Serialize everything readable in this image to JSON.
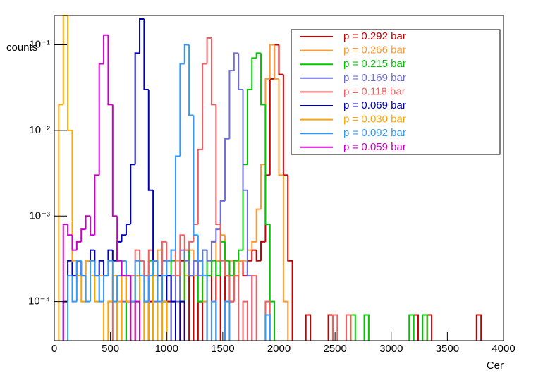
{
  "chart_data": {
    "type": "histogram",
    "xlabel": "Cer",
    "ylabel": "counts",
    "logy": true,
    "legend": "upper right",
    "xlim": [
      0,
      4000
    ],
    "xticks": [
      0,
      500,
      1000,
      1500,
      2000,
      2500,
      3000,
      3500,
      4000
    ],
    "ylim": [
      3.5e-05,
      0.22
    ],
    "yticks": [
      {
        "value": 0.0001,
        "label": "10⁻⁴"
      },
      {
        "value": 0.001,
        "label": "10⁻³"
      },
      {
        "value": 0.01,
        "label": "10⁻²"
      },
      {
        "value": 0.1,
        "label": "10⁻¹"
      }
    ],
    "bins": [
      0,
      40,
      80,
      120,
      160,
      200,
      240,
      280,
      320,
      360,
      400,
      440,
      480,
      520,
      560,
      600,
      640,
      680,
      720,
      760,
      800,
      840,
      880,
      920,
      960,
      1000,
      1040,
      1080,
      1120,
      1160,
      1200,
      1240,
      1280,
      1320,
      1360,
      1400,
      1440,
      1480,
      1520,
      1560,
      1600,
      1640,
      1680,
      1720,
      1760,
      1800,
      1840,
      1880,
      1920,
      1960,
      2000,
      2040,
      2080,
      2120,
      2160,
      2200,
      2240,
      2280,
      2320,
      2360,
      2400,
      2440,
      2480,
      2520,
      2560,
      2600,
      2640,
      2680,
      2720,
      2760,
      2800,
      2840,
      2880,
      2920,
      2960,
      3000,
      3040,
      3080,
      3120,
      3160,
      3200,
      3240,
      3280,
      3320,
      3360,
      3400,
      3440,
      3480,
      3520,
      3560,
      3600,
      3640,
      3680,
      3720,
      3760,
      3800,
      3840,
      3880,
      3920,
      3960,
      4000
    ],
    "series": [
      {
        "name": "p = 0.292 bar",
        "color": "#c80000",
        "values": [
          null,
          null,
          null,
          null,
          null,
          null,
          null,
          null,
          null,
          null,
          null,
          null,
          null,
          null,
          null,
          null,
          0.0001,
          null,
          0.0002,
          null,
          null,
          0.0001,
          null,
          0.0002,
          null,
          0.0001,
          null,
          null,
          0.0003,
          null,
          0.0002,
          null,
          0.0001,
          null,
          0.0002,
          null,
          0.0003,
          null,
          0.0002,
          0.0001,
          0.0002,
          0.0003,
          0.0002,
          0.0003,
          0.0004,
          0.0003,
          0.0005,
          0.003,
          0.04,
          0.1,
          0.045,
          0.003,
          0.0003,
          null,
          null,
          null,
          7e-05,
          null,
          null,
          null,
          null,
          7e-05,
          null,
          null,
          null,
          7e-05,
          null,
          null,
          null,
          null,
          null,
          null,
          null,
          null,
          null,
          null,
          null,
          null,
          null,
          null,
          7e-05,
          null,
          null,
          7e-05,
          null,
          null,
          null,
          null,
          null,
          null,
          null,
          null,
          null,
          null,
          7e-05,
          null,
          null,
          null,
          null,
          null
        ]
      },
      {
        "name": "p = 0.266 bar",
        "color": "#ff9933",
        "values": [
          null,
          null,
          null,
          null,
          null,
          null,
          null,
          null,
          null,
          null,
          null,
          null,
          null,
          null,
          0.0001,
          null,
          0.0002,
          0.0001,
          null,
          0.0003,
          0.0001,
          null,
          0.0002,
          0.0004,
          null,
          0.0002,
          0.0001,
          0.0003,
          null,
          0.0002,
          0.0004,
          0.0002,
          0.0003,
          0.0001,
          0.0002,
          0.0005,
          0.0003,
          0.0006,
          0.0002,
          0.0003,
          0.0002,
          0.0003,
          0.0003,
          0.0004,
          0.0005,
          0.0012,
          0.004,
          0.04,
          0.1,
          0.04,
          0.003,
          0.0001,
          null,
          null,
          null,
          null,
          null,
          null,
          null,
          null,
          null,
          null,
          null,
          null,
          null,
          null,
          null,
          null,
          null,
          null,
          null,
          null,
          null,
          null,
          null,
          null,
          null,
          null,
          null,
          null,
          null,
          null,
          null,
          null,
          null,
          null,
          null,
          null,
          null,
          null,
          null,
          null,
          null,
          null,
          null,
          null,
          null,
          null,
          null,
          null
        ]
      },
      {
        "name": "p = 0.215 bar",
        "color": "#00c800",
        "values": [
          null,
          null,
          null,
          null,
          null,
          null,
          null,
          null,
          null,
          null,
          null,
          null,
          null,
          null,
          null,
          0.0002,
          null,
          0.0001,
          0.0002,
          null,
          0.0001,
          0.0003,
          null,
          0.0002,
          0.0001,
          null,
          0.0003,
          0.0002,
          0.0001,
          0.0004,
          0.0002,
          0.0003,
          0.0001,
          0.0004,
          0.0002,
          0.0003,
          0.0002,
          0.0005,
          0.0003,
          0.0002,
          0.0003,
          0.0004,
          0.004,
          0.03,
          0.07,
          0.08,
          0.02,
          0.0008,
          0.0001,
          null,
          null,
          null,
          null,
          null,
          null,
          null,
          null,
          null,
          null,
          null,
          null,
          null,
          null,
          null,
          null,
          null,
          7e-05,
          null,
          null,
          7e-05,
          null,
          null,
          null,
          null,
          null,
          null,
          null,
          null,
          null,
          7e-05,
          null,
          null,
          7e-05,
          null,
          null,
          null,
          null,
          null,
          null,
          null,
          null,
          null,
          null,
          null,
          null,
          null,
          null,
          null,
          null,
          null
        ]
      },
      {
        "name": "p = 0.169 bar",
        "color": "#6c6cdc",
        "values": [
          null,
          null,
          null,
          null,
          null,
          null,
          null,
          null,
          null,
          null,
          null,
          null,
          null,
          null,
          null,
          0.0001,
          0.0002,
          null,
          0.0001,
          0.0003,
          0.0002,
          null,
          0.0001,
          0.0002,
          0.0003,
          null,
          0.0002,
          0.0001,
          0.0004,
          0.0003,
          0.0002,
          0.0003,
          0.0002,
          0.0004,
          0.0003,
          0.0005,
          0.0007,
          0.0015,
          0.008,
          0.05,
          0.08,
          0.03,
          0.002,
          0.0002,
          null,
          null,
          null,
          null,
          null,
          null,
          null,
          null,
          null,
          null,
          null,
          null,
          null,
          null,
          null,
          null,
          null,
          null,
          null,
          null,
          null,
          null,
          null,
          null,
          null,
          null,
          null,
          null,
          null,
          null,
          null,
          null,
          null,
          null,
          null,
          null,
          null,
          null,
          null,
          null,
          null,
          null,
          null,
          null,
          null,
          null,
          null,
          null,
          null,
          null,
          null,
          null,
          null,
          null,
          null,
          null
        ]
      },
      {
        "name": "p = 0.118 bar",
        "color": "#f06060",
        "values": [
          null,
          null,
          null,
          null,
          null,
          null,
          null,
          null,
          null,
          null,
          null,
          null,
          0.0001,
          null,
          0.0002,
          0.0003,
          0.0001,
          0.0002,
          0.0004,
          0.0003,
          0.0002,
          0.0004,
          0.0003,
          0.0002,
          0.0005,
          0.0003,
          0.0004,
          0.0002,
          0.0006,
          0.0004,
          0.0005,
          0.0008,
          0.006,
          0.06,
          0.12,
          0.02,
          0.0008,
          0.0003,
          0.0002,
          0.0001,
          0.0002,
          null,
          0.0001,
          null,
          0.0002,
          null,
          null,
          0.0001,
          null,
          null,
          null,
          null,
          null,
          null,
          null,
          null,
          null,
          null,
          null,
          null,
          null,
          null,
          7e-05,
          null,
          null,
          7e-05,
          null,
          null,
          null,
          null,
          null,
          null,
          null,
          null,
          null,
          null,
          null,
          null,
          null,
          null,
          null,
          null,
          null,
          null,
          null,
          null,
          null,
          null,
          null,
          null,
          null,
          null,
          null,
          null,
          null,
          null,
          null,
          null,
          null,
          null
        ]
      },
      {
        "name": "p = 0.069 bar",
        "color": "#0000b4",
        "values": [
          null,
          null,
          0.0001,
          0.0003,
          0.0002,
          0.0003,
          0.0002,
          0.0003,
          0.0004,
          0.0002,
          0.0003,
          0.0002,
          0.0004,
          0.0003,
          0.0005,
          0.0006,
          0.0008,
          0.004,
          0.08,
          0.2,
          0.03,
          0.002,
          0.0003,
          0.0002,
          0.0001,
          0.0002,
          0.0001,
          null,
          0.0001,
          null,
          null,
          null,
          null,
          null,
          null,
          null,
          null,
          null,
          null,
          null,
          null,
          null,
          null,
          null,
          null,
          null,
          null,
          null,
          null,
          null,
          null,
          null,
          null,
          null,
          null,
          null,
          null,
          null,
          null,
          null,
          null,
          null,
          null,
          null,
          null,
          null,
          null,
          null,
          null,
          null,
          null,
          null,
          null,
          null,
          null,
          null,
          null,
          null,
          null,
          null,
          null,
          null,
          null,
          null,
          null,
          null,
          null,
          null,
          null,
          null,
          null,
          null,
          null,
          null,
          null,
          null,
          null,
          null,
          null,
          null
        ]
      },
      {
        "name": "p = 0.030 bar",
        "color": "#ffa500",
        "values": [
          null,
          0.02,
          0.22,
          0.01,
          0.0003,
          0.0002,
          0.0001,
          0.0003,
          0.0002,
          0.0001,
          0.0002,
          null,
          0.0001,
          0.0002,
          null,
          0.0003,
          0.0001,
          null,
          0.0002,
          null,
          0.0001,
          null,
          0.0002,
          null,
          0.0001,
          null,
          null,
          null,
          null,
          null,
          null,
          null,
          null,
          null,
          null,
          null,
          null,
          null,
          null,
          null,
          null,
          null,
          null,
          null,
          null,
          null,
          null,
          null,
          null,
          null,
          null,
          null,
          null,
          null,
          null,
          null,
          null,
          null,
          null,
          null,
          null,
          null,
          null,
          null,
          null,
          null,
          null,
          null,
          null,
          null,
          null,
          null,
          null,
          null,
          null,
          null,
          null,
          null,
          null,
          null,
          null,
          null,
          null,
          null,
          null,
          null,
          null,
          null,
          null,
          null,
          null,
          null,
          null,
          null,
          null,
          null,
          null,
          null,
          null,
          null
        ]
      },
      {
        "name": "p = 0.092 bar",
        "color": "#3399ff",
        "values": [
          null,
          null,
          null,
          0.0002,
          0.0001,
          0.0003,
          0.0002,
          0.0001,
          0.0003,
          0.0002,
          0.0001,
          0.0002,
          0.0003,
          0.0001,
          0.0002,
          0.0003,
          0.0002,
          0.0001,
          0.0003,
          0.0002,
          0.0001,
          0.0002,
          0.0003,
          0.0001,
          0.0002,
          0.0003,
          0.0004,
          0.005,
          0.06,
          0.1,
          0.015,
          0.0006,
          0.0003,
          0.0002,
          null,
          0.0001,
          null,
          null,
          0.0001,
          null,
          null,
          null,
          null,
          null,
          null,
          null,
          null,
          7e-05,
          null,
          null,
          null,
          null,
          null,
          null,
          null,
          null,
          null,
          null,
          null,
          null,
          null,
          null,
          null,
          null,
          null,
          null,
          null,
          null,
          null,
          null,
          null,
          null,
          null,
          null,
          null,
          null,
          null,
          null,
          null,
          null,
          null,
          null,
          null,
          null,
          null,
          null,
          null,
          null,
          null,
          null,
          null,
          null,
          null,
          null,
          null,
          null,
          null,
          null,
          null,
          null
        ]
      },
      {
        "name": "p = 0.059 bar",
        "color": "#c800c8",
        "values": [
          null,
          null,
          0.0008,
          0.0006,
          0.0004,
          0.0005,
          0.0007,
          0.001,
          0.0006,
          0.003,
          0.06,
          0.13,
          0.02,
          0.001,
          0.0003,
          0.0002,
          0.0002,
          null,
          0.0001,
          null,
          null,
          null,
          null,
          null,
          null,
          null,
          null,
          null,
          null,
          null,
          null,
          null,
          null,
          null,
          null,
          null,
          null,
          null,
          null,
          null,
          null,
          null,
          null,
          null,
          null,
          null,
          null,
          null,
          null,
          null,
          null,
          null,
          null,
          null,
          null,
          null,
          null,
          null,
          null,
          null,
          null,
          null,
          null,
          null,
          null,
          null,
          null,
          null,
          null,
          null,
          null,
          null,
          null,
          null,
          null,
          null,
          null,
          null,
          null,
          null,
          null,
          null,
          null,
          null,
          null,
          null,
          null,
          null,
          null,
          null,
          null,
          null,
          null,
          null,
          null,
          null,
          null,
          null,
          null,
          null
        ]
      }
    ]
  }
}
